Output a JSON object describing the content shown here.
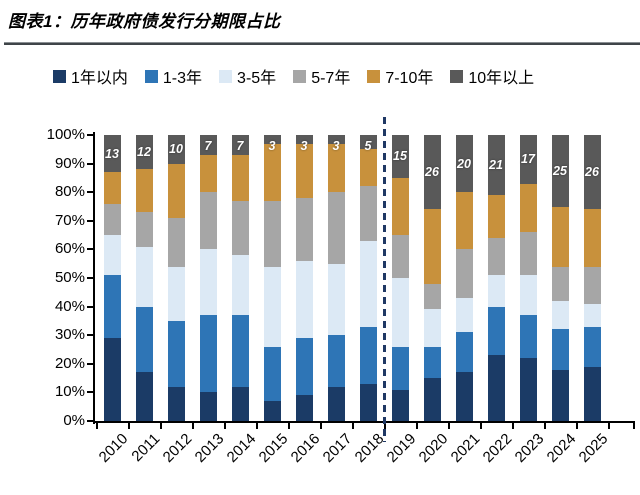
{
  "header": {
    "title": "图表1：历年政府债发行分期限占比"
  },
  "chart_data": {
    "type": "bar",
    "subtype": "stacked-percent-column",
    "title": "历年政府债发行分期限占比",
    "categories": [
      "2010",
      "2011",
      "2012",
      "2013",
      "2014",
      "2015",
      "2016",
      "2017",
      "2018",
      "2019",
      "2020",
      "2021",
      "2022",
      "2023",
      "2024",
      "2025"
    ],
    "series": [
      {
        "name": "1年以内",
        "color": "#1B3B66",
        "values": [
          29,
          17,
          12,
          10,
          12,
          7,
          9,
          12,
          13,
          11,
          15,
          17,
          23,
          22,
          18,
          19
        ]
      },
      {
        "name": "1-3年",
        "color": "#2E75B6",
        "values": [
          22,
          23,
          23,
          27,
          25,
          19,
          20,
          18,
          20,
          15,
          11,
          14,
          17,
          15,
          14,
          14
        ]
      },
      {
        "name": "3-5年",
        "color": "#DCE9F5",
        "values": [
          14,
          21,
          19,
          23,
          21,
          28,
          27,
          25,
          30,
          24,
          13,
          12,
          11,
          14,
          10,
          8
        ]
      },
      {
        "name": "5-7年",
        "color": "#A6A6A6",
        "values": [
          11,
          12,
          17,
          20,
          19,
          23,
          22,
          25,
          19,
          15,
          9,
          17,
          13,
          15,
          12,
          13
        ]
      },
      {
        "name": "7-10年",
        "color": "#C8913C",
        "values": [
          11,
          15,
          19,
          13,
          16,
          20,
          19,
          17,
          13,
          20,
          26,
          20,
          15,
          17,
          21,
          20
        ]
      },
      {
        "name": "10年以上",
        "color": "#595959",
        "values": [
          13,
          12,
          10,
          7,
          7,
          3,
          3,
          3,
          5,
          15,
          26,
          20,
          21,
          17,
          25,
          26
        ]
      }
    ],
    "data_labels": {
      "on_series": "10年以上",
      "values": [
        13,
        12,
        10,
        7,
        7,
        3,
        3,
        3,
        5,
        15,
        26,
        20,
        21,
        17,
        25,
        26
      ]
    },
    "y_ticks": [
      "100%",
      "90%",
      "80%",
      "70%",
      "60%",
      "50%",
      "40%",
      "30%",
      "20%",
      "10%",
      "0%"
    ],
    "ylim": [
      0,
      100
    ],
    "grid": "off",
    "legend_position": "top",
    "divider": {
      "between": [
        "2018",
        "2019"
      ],
      "style": "dashed",
      "color": "#1F3864"
    }
  },
  "colors": {
    "axis": "#000000",
    "title_rule": "#3F4448",
    "background": "#FFFFFF",
    "data_label_text": "#FFFFFF"
  }
}
